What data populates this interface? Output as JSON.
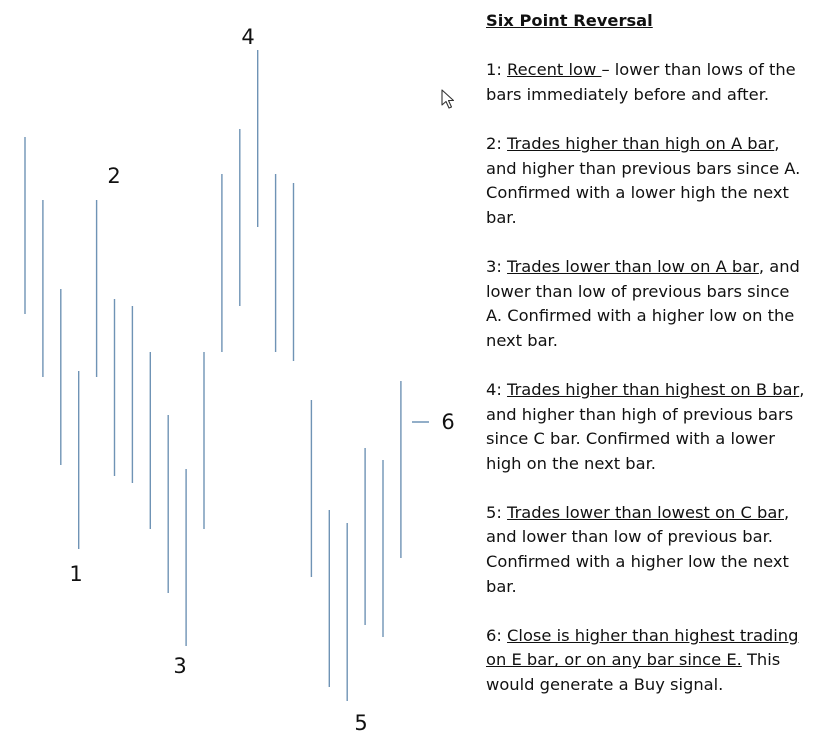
{
  "chart_data": {
    "type": "bar",
    "title": "",
    "xlabel": "",
    "ylabel": "",
    "bars": [
      {
        "high": 617,
        "low": 440
      },
      {
        "high": 554,
        "low": 377
      },
      {
        "high": 465,
        "low": 289
      },
      {
        "high": 383,
        "low": 205
      },
      {
        "high": 554,
        "low": 377
      },
      {
        "high": 455,
        "low": 278
      },
      {
        "high": 448,
        "low": 271
      },
      {
        "high": 402,
        "low": 225
      },
      {
        "high": 339,
        "low": 161
      },
      {
        "high": 285,
        "low": 108
      },
      {
        "high": 402,
        "low": 225
      },
      {
        "high": 580,
        "low": 402
      },
      {
        "high": 625,
        "low": 448
      },
      {
        "high": 704,
        "low": 527
      },
      {
        "high": 580,
        "low": 402
      },
      {
        "high": 571,
        "low": 393
      },
      {
        "high": 354,
        "low": 177
      },
      {
        "high": 244,
        "low": 67
      },
      {
        "high": 231,
        "low": 53
      },
      {
        "high": 306,
        "low": 129
      },
      {
        "high": 294,
        "low": 117
      },
      {
        "high": 373,
        "low": 196
      }
    ],
    "ylim": [
      0,
      754
    ],
    "annotations": [
      {
        "label": "1",
        "bar": 3
      },
      {
        "label": "2",
        "bar": 4
      },
      {
        "label": "3",
        "bar": 8
      },
      {
        "label": "4",
        "bar": 12
      },
      {
        "label": "5",
        "bar": 17
      },
      {
        "label": "6",
        "bar": 21
      }
    ]
  },
  "legend": {
    "title": "Six Point Reversal",
    "rules": [
      {
        "n": "1:",
        "u": "Recent low ",
        "rest": "– lower than lows of the bars immediately before and after."
      },
      {
        "n": "2:",
        "u": "Trades higher than high on A bar",
        "rest": ", and higher than previous bars since A. Confirmed with a lower high the next bar."
      },
      {
        "n": "3:",
        "u": "Trades lower than low on A bar",
        "rest": ", and lower than low of previous bars since A. Confirmed with a higher low on the next bar."
      },
      {
        "n": "4:",
        "u": "Trades higher than highest on B bar",
        "rest": ", and higher than high of previous bars since C bar. Confirmed with a lower high on the next bar."
      },
      {
        "n": "5:",
        "u": "Trades lower than lowest on C bar",
        "rest": ", and lower than low of previous bar. Confirmed with a higher low the next bar."
      },
      {
        "n": "6:",
        "u": "Close is higher than highest trading on E bar, or on any bar since E.",
        "rest": "  This would generate a Buy signal."
      }
    ]
  },
  "cursor": {
    "icon": "arrow-pointer-icon"
  }
}
